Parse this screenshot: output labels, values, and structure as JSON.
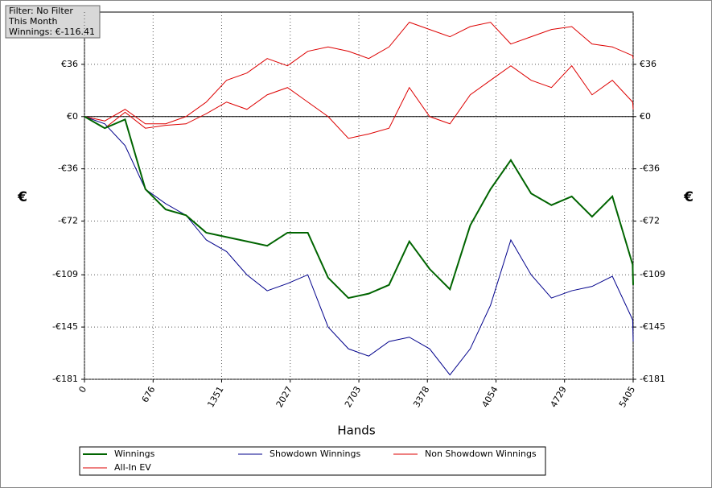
{
  "chart_data": {
    "type": "line",
    "info": [
      "Filter: No Filter",
      "This Month",
      "Winnings: €-116.41"
    ],
    "xlabel": "Hands",
    "ylabel": "€",
    "x": [
      0,
      200,
      400,
      600,
      800,
      1000,
      1200,
      1400,
      1600,
      1800,
      2000,
      2200,
      2400,
      2600,
      2800,
      3000,
      3200,
      3400,
      3600,
      3800,
      4000,
      4200,
      4400,
      4600,
      4800,
      5000,
      5200,
      5400,
      5405
    ],
    "series": [
      {
        "name": "Winnings",
        "color": "#006400",
        "values": [
          0,
          -8,
          -2,
          -50,
          -64,
          -68,
          -80,
          -83,
          -86,
          -89,
          -80,
          -80,
          -111,
          -125,
          -122,
          -116,
          -86,
          -105,
          -119,
          -75,
          -50,
          -30,
          -53,
          -61,
          -55,
          -69,
          -55,
          -102,
          -116
        ]
      },
      {
        "name": "Showdown Winnings",
        "color": "#00008b",
        "values": [
          0,
          -5,
          -20,
          -50,
          -60,
          -68,
          -85,
          -93,
          -109,
          -120,
          -115,
          -109,
          -145,
          -160,
          -165,
          -155,
          -152,
          -160,
          -178,
          -160,
          -130,
          -85,
          -109,
          -125,
          -120,
          -117,
          -110,
          -140,
          -155
        ]
      },
      {
        "name": "Non Showdown Winnings",
        "color": "#dd0000",
        "values": [
          0,
          -3,
          5,
          -5,
          -5,
          0,
          10,
          25,
          30,
          40,
          35,
          45,
          48,
          45,
          40,
          48,
          65,
          60,
          55,
          62,
          65,
          50,
          55,
          60,
          62,
          50,
          48,
          42,
          40
        ]
      },
      {
        "name": "All-In EV",
        "color": "#dd0000",
        "values": [
          0,
          -8,
          3,
          -8,
          -6,
          -5,
          2,
          10,
          5,
          15,
          20,
          10,
          0,
          -15,
          -12,
          -8,
          20,
          0,
          -5,
          15,
          25,
          35,
          25,
          20,
          35,
          15,
          25,
          10,
          5
        ]
      }
    ],
    "xlim": [
      0,
      5405
    ],
    "xticks": [
      0,
      676,
      1351,
      2027,
      2703,
      3378,
      4054,
      4729,
      5405
    ],
    "ylim": [
      -181,
      72
    ],
    "yticks": [
      {
        "value": -181,
        "label": "-€181"
      },
      {
        "value": -145,
        "label": "-€145"
      },
      {
        "value": -109,
        "label": "-€109"
      },
      {
        "value": -72,
        "label": "-€72"
      },
      {
        "value": -36,
        "label": "-€36"
      },
      {
        "value": 0,
        "label": "€0"
      },
      {
        "value": 36,
        "label": "€36"
      }
    ],
    "grid": true
  }
}
